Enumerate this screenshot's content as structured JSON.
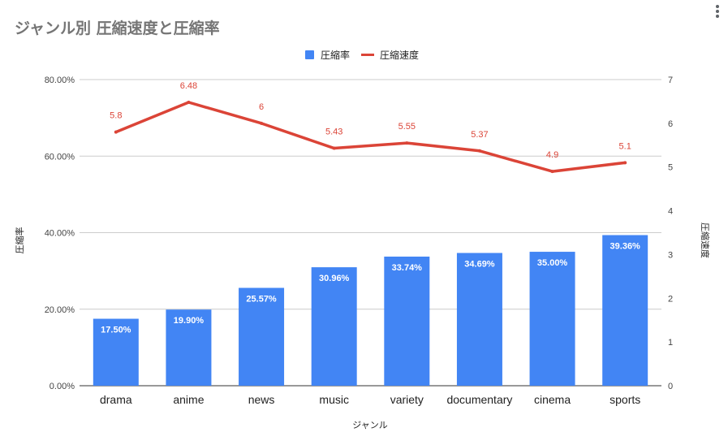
{
  "chart_data": {
    "type": "bar",
    "title": "ジャンル別 圧縮速度と圧縮率",
    "xlabel": "ジャンル",
    "ylabel": "圧縮率",
    "y2label": "圧縮速度",
    "categories": [
      "drama",
      "anime",
      "news",
      "music",
      "variety",
      "documentary",
      "cinema",
      "sports"
    ],
    "series": [
      {
        "name": "圧縮率",
        "type": "bar",
        "axis": "left",
        "color": "#4285f4",
        "values": [
          17.5,
          19.9,
          25.57,
          30.96,
          33.74,
          34.69,
          35.0,
          39.36
        ],
        "labels": [
          "17.50%",
          "19.90%",
          "25.57%",
          "30.96%",
          "33.74%",
          "34.69%",
          "35.00%",
          "39.36%"
        ]
      },
      {
        "name": "圧縮速度",
        "type": "line",
        "axis": "right",
        "color": "#db4437",
        "values": [
          5.8,
          6.48,
          6,
          5.43,
          5.55,
          5.37,
          4.9,
          5.1
        ],
        "labels": [
          "5.8",
          "6.48",
          "6",
          "5.43",
          "5.55",
          "5.37",
          "4.9",
          "5.1"
        ]
      }
    ],
    "ylim": [
      0,
      80
    ],
    "y2lim": [
      0,
      7
    ],
    "yticks": [
      "0.00%",
      "20.00%",
      "40.00%",
      "60.00%",
      "80.00%"
    ],
    "y2ticks": [
      "0",
      "1",
      "2",
      "3",
      "4",
      "5",
      "6",
      "7"
    ],
    "legend": "top",
    "grid": true
  }
}
